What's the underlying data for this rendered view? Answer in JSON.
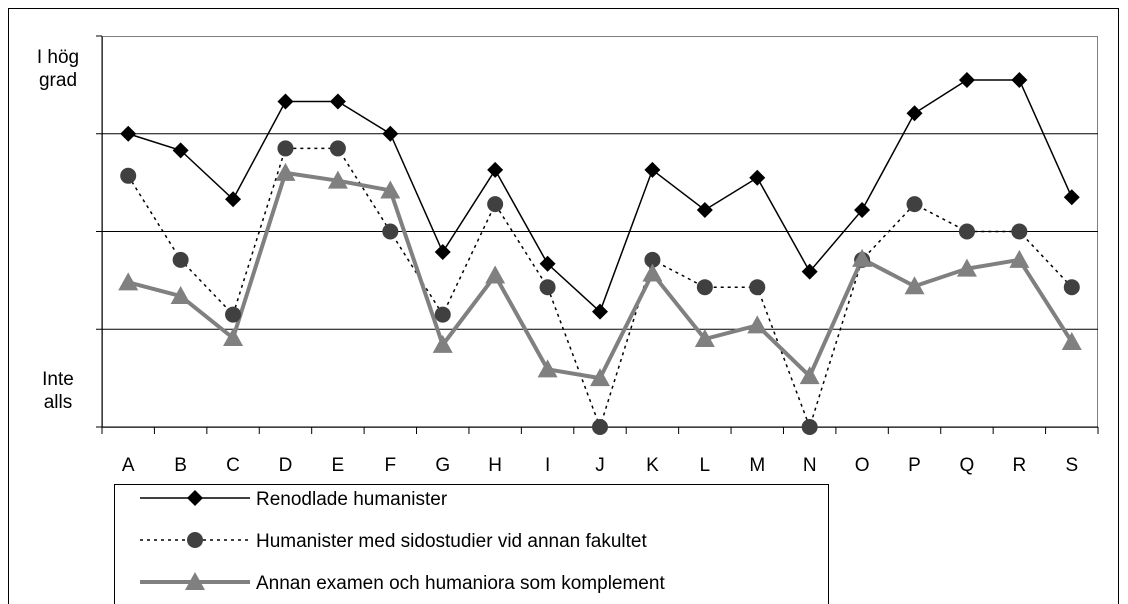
{
  "chart_data": {
    "type": "line",
    "categories": [
      "A",
      "B",
      "C",
      "D",
      "E",
      "F",
      "G",
      "H",
      "I",
      "J",
      "K",
      "L",
      "M",
      "N",
      "O",
      "P",
      "Q",
      "R",
      "S"
    ],
    "series": [
      {
        "name": "Renodlade humanister",
        "color": "#000000",
        "marker": "diamond",
        "line": "solid",
        "values": [
          4.0,
          3.83,
          3.33,
          4.33,
          4.33,
          4.0,
          2.79,
          3.63,
          2.67,
          2.18,
          3.63,
          3.22,
          3.55,
          2.59,
          3.22,
          4.21,
          4.55,
          4.55,
          3.35
        ]
      },
      {
        "name": "Humanister med sidostudier vid annan fakultet",
        "color": "#404040",
        "marker": "circle",
        "line": "dotted",
        "values": [
          3.57,
          2.71,
          2.15,
          3.85,
          3.85,
          3.0,
          2.15,
          3.28,
          2.43,
          1.0,
          2.71,
          2.43,
          2.43,
          1.0,
          2.71,
          3.28,
          3.0,
          3.0,
          2.43
        ]
      },
      {
        "name": "Annan examen och humaniora som komplement",
        "color": "#808080",
        "marker": "triangle",
        "line": "thick",
        "values": [
          2.48,
          2.34,
          1.91,
          3.6,
          3.52,
          3.42,
          1.84,
          2.55,
          1.59,
          1.5,
          2.57,
          1.9,
          2.04,
          1.52,
          2.72,
          2.44,
          2.62,
          2.71,
          1.87
        ]
      }
    ],
    "ylim": [
      1,
      5
    ],
    "yticks": [
      {
        "value": 1,
        "label": "Inte alls"
      },
      {
        "value": 5,
        "label": "I hög grad"
      }
    ],
    "gridlines": [
      2,
      3,
      4
    ],
    "legend": "bottom-left"
  }
}
